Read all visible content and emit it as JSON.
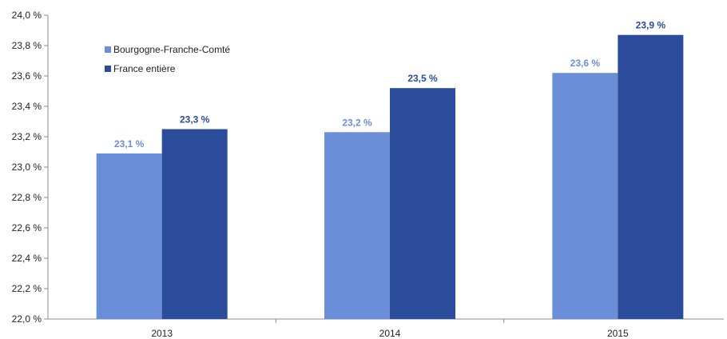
{
  "chart_data": {
    "type": "bar",
    "title": "",
    "xlabel": "",
    "ylabel": "",
    "categories": [
      "2013",
      "2014",
      "2015"
    ],
    "ylim": [
      22.0,
      24.0
    ],
    "yticks": [
      22.0,
      22.2,
      22.4,
      22.6,
      22.8,
      23.0,
      23.2,
      23.4,
      23.6,
      23.8,
      24.0
    ],
    "ytick_labels": [
      "22,0 %",
      "22,2 %",
      "22,4 %",
      "22,6 %",
      "22,8 %",
      "23,0 %",
      "23,2 %",
      "23,4 %",
      "23,6 %",
      "23,8 %",
      "24,0 %"
    ],
    "grid": false,
    "legend_position": "top-left",
    "series": [
      {
        "name": "Bourgogne-Franche-Comté",
        "color": "#6a8fd8",
        "values": [
          23.09,
          23.23,
          23.62
        ],
        "labels": [
          "23,1 %",
          "23,2 %",
          "23,6 %"
        ]
      },
      {
        "name": "France entière",
        "color": "#2b4c9b",
        "values": [
          23.25,
          23.52,
          23.87
        ],
        "labels": [
          "23,3 %",
          "23,5 %",
          "23,9 %"
        ]
      }
    ]
  }
}
